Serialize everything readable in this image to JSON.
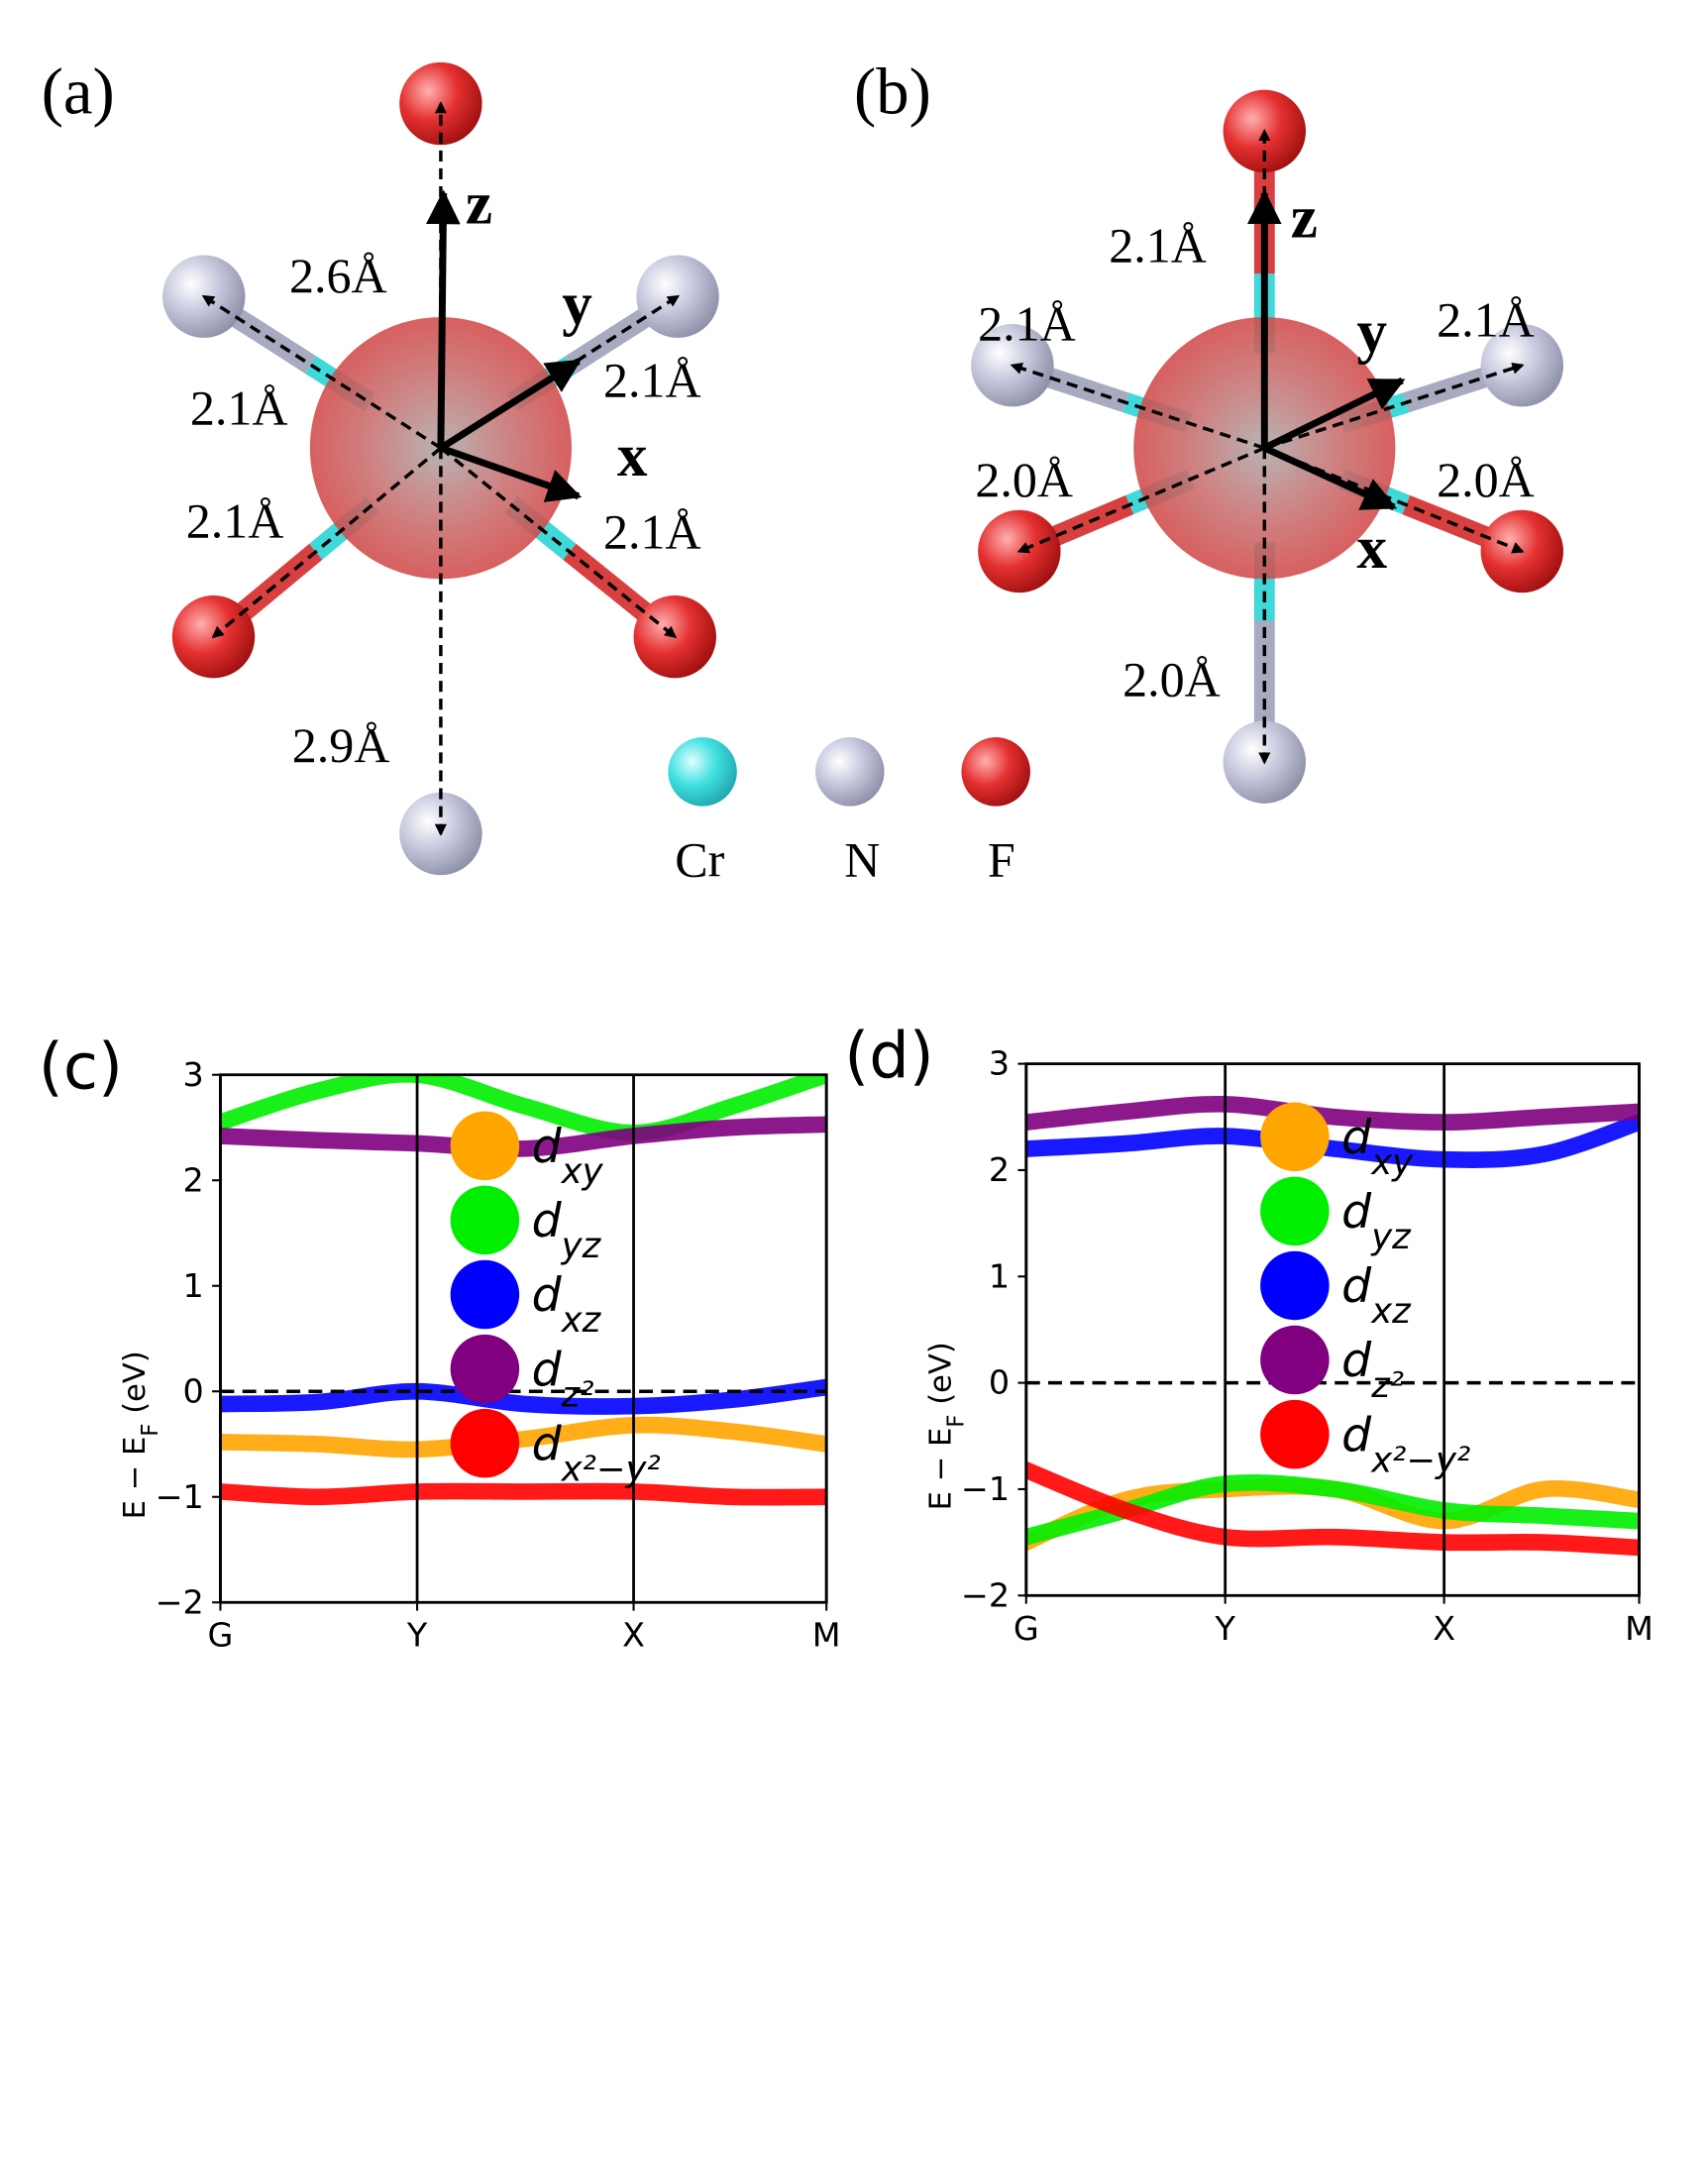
{
  "panels": [
    {
      "label": "(a)",
      "axes": [
        "z",
        "y",
        "x"
      ],
      "bonds": [
        "2.6Å",
        "2.1Å",
        "2.1Å",
        "2.1Å",
        "2.1Å",
        "2.9Å"
      ]
    },
    {
      "label": "(b)",
      "axes": [
        "z",
        "y",
        "x"
      ],
      "bonds": [
        "2.1Å",
        "2.1Å",
        "2.1Å",
        "2.0Å",
        "2.0Å",
        "2.0Å"
      ]
    }
  ],
  "elements": [
    "Cr",
    "N",
    "F"
  ],
  "chart_data": [
    {
      "type": "line",
      "title": "(c)",
      "ylabel": "E − E_{F} (eV)",
      "x": [
        0,
        0.5,
        1,
        1.55,
        2.1,
        2.6,
        3.08
      ],
      "xlim": [
        0,
        3.08
      ],
      "xticks": [
        {
          "value": 0,
          "label": "G"
        },
        {
          "value": 1,
          "label": "Y"
        },
        {
          "value": 2.1,
          "label": "X"
        },
        {
          "value": 3.08,
          "label": "M"
        }
      ],
      "ylim": [
        -2,
        3
      ],
      "yticks": [
        {
          "value": -2,
          "label": "−2"
        },
        {
          "value": -1,
          "label": "−1"
        },
        0,
        1,
        2,
        3
      ],
      "fermi_level": 0,
      "legend": "center",
      "series": [
        {
          "name": "d_{xy}",
          "color": "#ffa500",
          "values": [
            -0.48,
            -0.5,
            -0.55,
            -0.45,
            -0.32,
            -0.38,
            -0.5
          ]
        },
        {
          "name": "d_{yz}",
          "color": "#00ee00",
          "values": [
            2.55,
            2.85,
            3.0,
            2.7,
            2.45,
            2.7,
            3.0
          ]
        },
        {
          "name": "d_{xz}",
          "color": "#0000ff",
          "values": [
            -0.12,
            -0.1,
            0.0,
            -0.12,
            -0.14,
            -0.08,
            0.04
          ]
        },
        {
          "name": "d_{z²}",
          "color": "#800080",
          "values": [
            2.42,
            2.38,
            2.35,
            2.3,
            2.42,
            2.5,
            2.53
          ]
        },
        {
          "name": "d_{x²−y²}",
          "color": "#ff0000",
          "values": [
            -0.95,
            -1.0,
            -0.95,
            -0.95,
            -0.95,
            -1.0,
            -1.0
          ]
        }
      ]
    },
    {
      "type": "line",
      "title": "(d)",
      "ylabel": "E − E_{F} (eV)",
      "x": [
        0,
        0.5,
        1,
        1.55,
        2.1,
        2.6,
        3.08
      ],
      "xlim": [
        0,
        3.08
      ],
      "xticks": [
        {
          "value": 0,
          "label": "G"
        },
        {
          "value": 1,
          "label": "Y"
        },
        {
          "value": 2.1,
          "label": "X"
        },
        {
          "value": 3.08,
          "label": "M"
        }
      ],
      "ylim": [
        -2,
        3
      ],
      "yticks": [
        {
          "value": -2,
          "label": "−2"
        },
        {
          "value": -1,
          "label": "−1"
        },
        0,
        1,
        2,
        3
      ],
      "fermi_level": 0,
      "legend": "center",
      "series": [
        {
          "name": "d_{xy}",
          "color": "#ffa500",
          "values": [
            -1.5,
            -1.1,
            -1.0,
            -1.0,
            -1.3,
            -1.0,
            -1.1
          ]
        },
        {
          "name": "d_{yz}",
          "color": "#00ee00",
          "values": [
            -1.45,
            -1.2,
            -0.95,
            -1.0,
            -1.2,
            -1.25,
            -1.3
          ]
        },
        {
          "name": "d_{xz}",
          "color": "#0000ff",
          "values": [
            2.2,
            2.25,
            2.32,
            2.2,
            2.1,
            2.15,
            2.45
          ]
        },
        {
          "name": "d_{z²}",
          "color": "#800080",
          "values": [
            2.45,
            2.55,
            2.62,
            2.5,
            2.45,
            2.5,
            2.55
          ]
        },
        {
          "name": "d_{x²−y²}",
          "color": "#ff0000",
          "values": [
            -0.82,
            -1.2,
            -1.45,
            -1.45,
            -1.5,
            -1.5,
            -1.55
          ]
        }
      ]
    }
  ]
}
